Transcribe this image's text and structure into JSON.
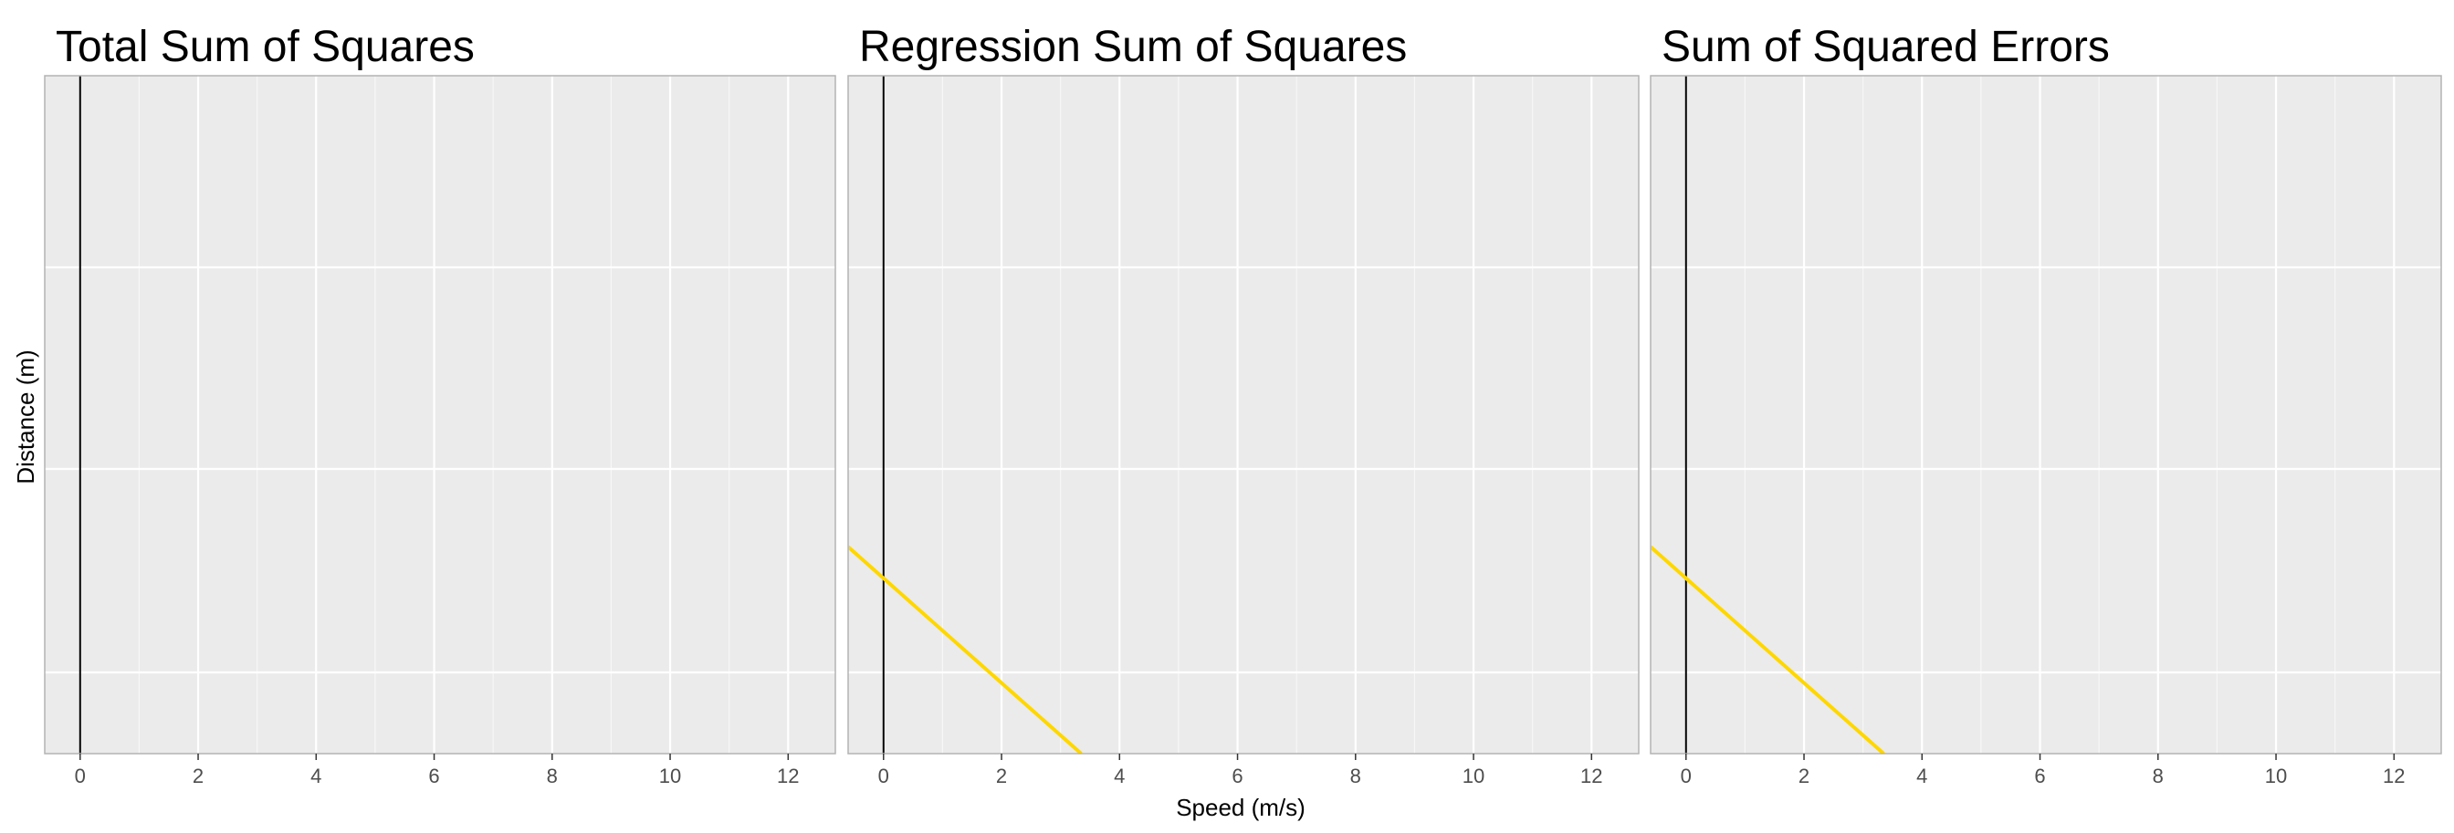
{
  "chart_data": [
    {
      "type": "line",
      "title": "Total Sum of Squares",
      "xlim": [
        -0.6,
        12.8
      ],
      "x_ticks": [
        "0",
        "2",
        "4",
        "6",
        "8",
        "10",
        "12"
      ],
      "y_ticks_shown": false,
      "reference_line": {
        "x": 0,
        "color": "#000000"
      },
      "series": [],
      "background": "#ebebeb",
      "grid": true
    },
    {
      "type": "line",
      "title": "Regression Sum of Squares",
      "xlim": [
        -0.6,
        12.8
      ],
      "x_ticks": [
        "0",
        "2",
        "4",
        "6",
        "8",
        "10",
        "12"
      ],
      "y_ticks_shown": false,
      "reference_line": {
        "x": 0,
        "color": "#000000"
      },
      "series": [
        {
          "color": "#FFD700",
          "x": [
            -0.6,
            3.35
          ],
          "y_fraction": [
            0.305,
            0.0
          ]
        }
      ],
      "background": "#ebebeb",
      "grid": true
    },
    {
      "type": "line",
      "title": "Sum of Squared Errors",
      "xlim": [
        -0.6,
        12.8
      ],
      "x_ticks": [
        "0",
        "2",
        "4",
        "6",
        "8",
        "10",
        "12"
      ],
      "y_ticks_shown": false,
      "reference_line": {
        "x": 0,
        "color": "#000000"
      },
      "series": [
        {
          "color": "#FFD700",
          "x": [
            -0.6,
            3.35
          ],
          "y_fraction": [
            0.305,
            0.0
          ]
        }
      ],
      "background": "#ebebeb",
      "grid": true
    }
  ],
  "shared_axes": {
    "xlabel": "Speed (m/s)",
    "ylabel": "Distance (m)"
  }
}
